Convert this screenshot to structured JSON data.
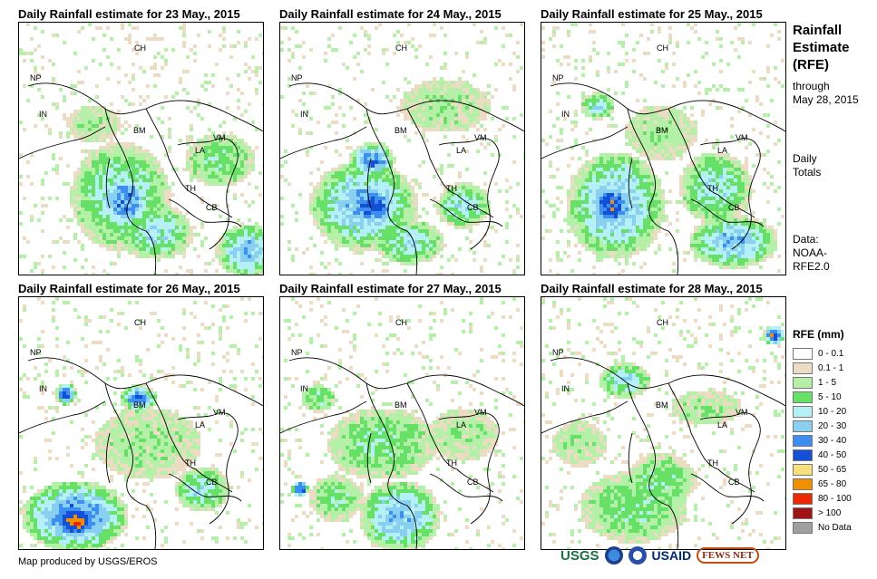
{
  "panels": [
    {
      "title": "Daily Rainfall estimate for 23 May., 2015"
    },
    {
      "title": "Daily Rainfall estimate for 24 May., 2015"
    },
    {
      "title": "Daily Rainfall estimate for 25 May., 2015"
    },
    {
      "title": "Daily Rainfall estimate for 26 May., 2015"
    },
    {
      "title": "Daily Rainfall estimate for 27 May., 2015"
    },
    {
      "title": "Daily Rainfall estimate for 28 May., 2015"
    }
  ],
  "country_labels": [
    "CH",
    "NP",
    "IN",
    "BM",
    "VM",
    "LA",
    "TH",
    "CB"
  ],
  "sidebar": {
    "title_lines": [
      "Rainfall",
      "Estimate",
      "(RFE)"
    ],
    "through_lines": [
      "through",
      "May 28, 2015"
    ],
    "totals_lines": [
      "Daily",
      "Totals"
    ],
    "data_lines": [
      "Data:",
      "NOAA-",
      "RFE2.0"
    ]
  },
  "legend": {
    "title": "RFE (mm)",
    "items": [
      {
        "label": "0 - 0.1",
        "color": "#ffffff"
      },
      {
        "label": "0.1 - 1",
        "color": "#ecdcc4"
      },
      {
        "label": "1 - 5",
        "color": "#b4f0a8"
      },
      {
        "label": "5 - 10",
        "color": "#66e066"
      },
      {
        "label": "10 - 20",
        "color": "#b4f0f6"
      },
      {
        "label": "20 - 30",
        "color": "#88cff0"
      },
      {
        "label": "30 - 40",
        "color": "#3c8ff0"
      },
      {
        "label": "40 - 50",
        "color": "#1450d6"
      },
      {
        "label": "50 - 65",
        "color": "#f6e07c"
      },
      {
        "label": "65 - 80",
        "color": "#f09000"
      },
      {
        "label": "80 - 100",
        "color": "#ec2800"
      },
      {
        "label": "> 100",
        "color": "#a01414"
      },
      {
        "label": "No Data",
        "color": "#a0a0a0"
      }
    ]
  },
  "credit": "Map produced by USGS/EROS",
  "logos": {
    "usgs": "USGS",
    "usaid": "USAID",
    "fews": "FEWS NET"
  }
}
